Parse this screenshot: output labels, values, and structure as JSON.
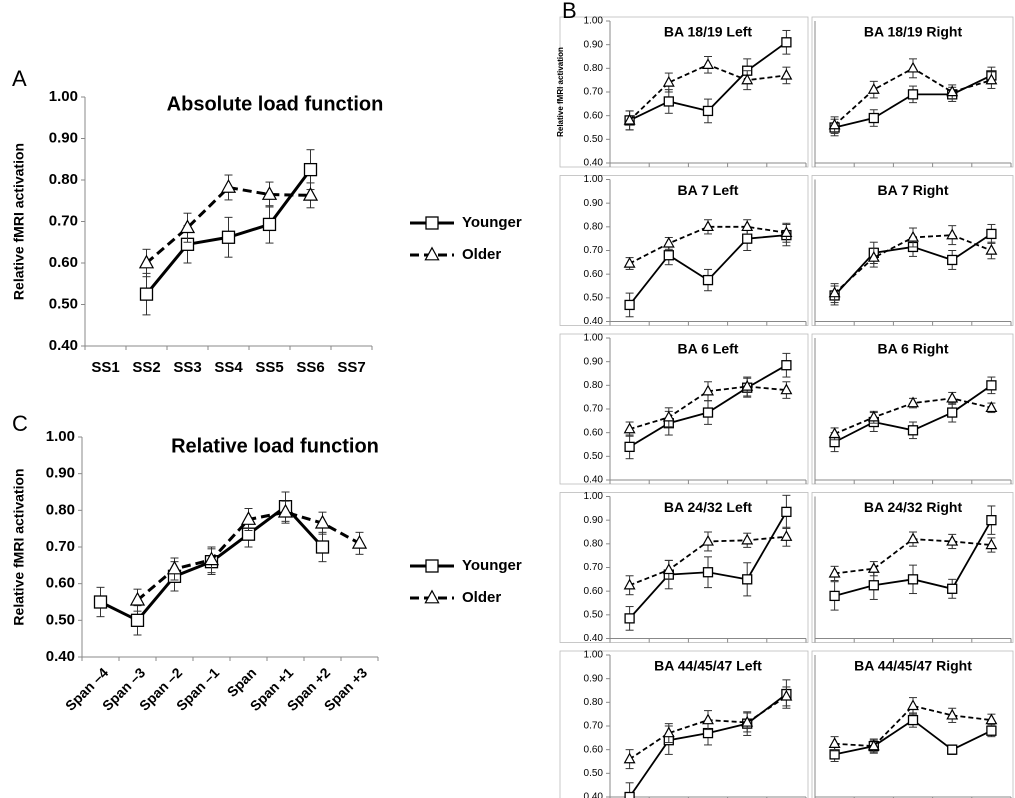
{
  "chart_data": [
    {
      "type": "line",
      "panel": "A",
      "title": "Absolute load function",
      "y_label": "Relative fMRI activation",
      "categories": [
        "SS1",
        "SS2",
        "SS3",
        "SS4",
        "SS5",
        "SS6",
        "SS7"
      ],
      "series": [
        {
          "name": "Younger",
          "color": "#000000",
          "dash": false,
          "marker": "square",
          "values": [
            null,
            0.525,
            0.645,
            0.662,
            0.693,
            0.825,
            null
          ],
          "errors": [
            null,
            0.05,
            0.045,
            0.048,
            0.045,
            0.048,
            null
          ]
        },
        {
          "name": "Older",
          "color": "#000000",
          "dash": true,
          "marker": "triangle",
          "values": [
            null,
            0.6,
            0.685,
            0.782,
            0.765,
            0.763,
            null
          ],
          "errors": [
            null,
            0.033,
            0.035,
            0.03,
            0.03,
            0.03,
            null
          ]
        }
      ],
      "ylim": [
        0.4,
        1.0
      ],
      "yticks": [
        {
          "value": 0.4,
          "label": "0.40"
        },
        {
          "value": 0.5,
          "label": "0.50"
        },
        {
          "value": 0.6,
          "label": "0.60"
        },
        {
          "value": 0.7,
          "label": "0.70"
        },
        {
          "value": 0.8,
          "label": "0.80"
        },
        {
          "value": 0.9,
          "label": "0.90"
        },
        {
          "value": 1.0,
          "label": "1.00"
        }
      ],
      "legend": "right"
    },
    {
      "type": "line",
      "panel": "C",
      "title": "Relative load function",
      "y_label": "Relative fMRI activation",
      "xlabel_rotation": -45,
      "categories": [
        "Span –4",
        "Span –3",
        "Span –2",
        "Span –1",
        "Span",
        "Span +1",
        "Span +2",
        "Span +3"
      ],
      "series": [
        {
          "name": "Younger",
          "color": "#000000",
          "dash": false,
          "marker": "square",
          "values": [
            0.55,
            0.5,
            0.62,
            0.66,
            0.735,
            0.81,
            0.7,
            null
          ],
          "errors": [
            0.04,
            0.04,
            0.04,
            0.035,
            0.035,
            0.04,
            0.04,
            null
          ]
        },
        {
          "name": "Older",
          "color": "#000000",
          "dash": true,
          "marker": "triangle",
          "values": [
            null,
            0.555,
            0.64,
            0.665,
            0.775,
            0.795,
            0.765,
            0.71
          ],
          "errors": [
            null,
            0.03,
            0.03,
            0.035,
            0.03,
            0.03,
            0.03,
            0.03
          ]
        }
      ],
      "ylim": [
        0.4,
        1.0
      ],
      "yticks": [
        {
          "value": 0.4,
          "label": "0.40"
        },
        {
          "value": 0.5,
          "label": "0.50"
        },
        {
          "value": 0.6,
          "label": "0.60"
        },
        {
          "value": 0.7,
          "label": "0.70"
        },
        {
          "value": 0.8,
          "label": "0.80"
        },
        {
          "value": 0.9,
          "label": "0.90"
        },
        {
          "value": 1.0,
          "label": "1.00"
        }
      ],
      "legend": "right"
    },
    {
      "type": "line",
      "panel": "B",
      "title": "BA 18/19 Left",
      "y_label": "Relative fMRI activation",
      "categories": [
        null,
        null,
        null,
        null,
        null
      ],
      "series": [
        {
          "color": "#000000",
          "dash": false,
          "marker": "square",
          "values": [
            0.58,
            0.66,
            0.62,
            0.79,
            0.91
          ],
          "errors": [
            0.04,
            0.05,
            0.05,
            0.05,
            0.05
          ]
        },
        {
          "color": "#000000",
          "dash": true,
          "marker": "triangle",
          "values": [
            0.58,
            0.74,
            0.815,
            0.75,
            0.77
          ],
          "errors": [
            0.04,
            0.04,
            0.035,
            0.04,
            0.035
          ]
        }
      ],
      "ylim": [
        0.4,
        1.0
      ],
      "yticks": [
        {
          "value": 0.4,
          "label": "0.40"
        },
        {
          "value": 0.5,
          "label": "0.50"
        },
        {
          "value": 0.6,
          "label": "0.60"
        },
        {
          "value": 0.7,
          "label": "0.70"
        },
        {
          "value": 0.8,
          "label": "0.80"
        },
        {
          "value": 0.9,
          "label": "0.90"
        },
        {
          "value": 1.0,
          "label": "1.00"
        }
      ]
    },
    {
      "type": "line",
      "title": "BA 18/19 Right",
      "categories": [
        null,
        null,
        null,
        null,
        null
      ],
      "series": [
        {
          "color": "#000000",
          "dash": false,
          "marker": "square",
          "values": [
            0.55,
            0.59,
            0.69,
            0.69,
            0.77
          ],
          "errors": [
            0.035,
            0.035,
            0.035,
            0.03,
            0.035
          ]
        },
        {
          "color": "#000000",
          "dash": true,
          "marker": "triangle",
          "values": [
            0.56,
            0.71,
            0.8,
            0.7,
            0.75
          ],
          "errors": [
            0.035,
            0.035,
            0.04,
            0.03,
            0.035
          ]
        }
      ],
      "ylim": [
        0.4,
        1.0
      ]
    },
    {
      "type": "line",
      "title": "BA 7 Left",
      "categories": [
        null,
        null,
        null,
        null,
        null
      ],
      "series": [
        {
          "color": "#000000",
          "dash": false,
          "marker": "square",
          "values": [
            0.47,
            0.68,
            0.575,
            0.75,
            0.765
          ],
          "errors": [
            0.05,
            0.04,
            0.045,
            0.05,
            0.045
          ]
        },
        {
          "color": "#000000",
          "dash": true,
          "marker": "triangle",
          "values": [
            0.645,
            0.73,
            0.8,
            0.8,
            0.775
          ],
          "errors": [
            0.025,
            0.025,
            0.03,
            0.03,
            0.04
          ]
        }
      ],
      "ylim": [
        0.4,
        1.0
      ],
      "yticks": [
        {
          "value": 0.4,
          "label": "0.40"
        },
        {
          "value": 0.5,
          "label": "0.50"
        },
        {
          "value": 0.6,
          "label": "0.60"
        },
        {
          "value": 0.7,
          "label": "0.70"
        },
        {
          "value": 0.8,
          "label": "0.80"
        },
        {
          "value": 0.9,
          "label": "0.90"
        },
        {
          "value": 1.0,
          "label": "1.00"
        }
      ]
    },
    {
      "type": "line",
      "title": "BA 7 Right",
      "categories": [
        null,
        null,
        null,
        null,
        null
      ],
      "series": [
        {
          "color": "#000000",
          "dash": false,
          "marker": "square",
          "values": [
            0.51,
            0.69,
            0.715,
            0.66,
            0.77
          ],
          "errors": [
            0.04,
            0.045,
            0.04,
            0.04,
            0.04
          ]
        },
        {
          "color": "#000000",
          "dash": true,
          "marker": "triangle",
          "values": [
            0.52,
            0.67,
            0.755,
            0.765,
            0.7
          ],
          "errors": [
            0.04,
            0.04,
            0.04,
            0.04,
            0.035
          ]
        }
      ],
      "ylim": [
        0.4,
        1.0
      ]
    },
    {
      "type": "line",
      "title": "BA 6 Left",
      "categories": [
        null,
        null,
        null,
        null,
        null
      ],
      "series": [
        {
          "color": "#000000",
          "dash": false,
          "marker": "square",
          "values": [
            0.54,
            0.64,
            0.685,
            0.79,
            0.885
          ],
          "errors": [
            0.05,
            0.05,
            0.05,
            0.04,
            0.05
          ]
        },
        {
          "color": "#000000",
          "dash": true,
          "marker": "triangle",
          "values": [
            0.615,
            0.665,
            0.775,
            0.795,
            0.78
          ],
          "errors": [
            0.03,
            0.04,
            0.04,
            0.04,
            0.035
          ]
        }
      ],
      "ylim": [
        0.4,
        1.0
      ],
      "yticks": [
        {
          "value": 0.4,
          "label": "0.40"
        },
        {
          "value": 0.5,
          "label": "0.50"
        },
        {
          "value": 0.6,
          "label": "0.60"
        },
        {
          "value": 0.7,
          "label": "0.70"
        },
        {
          "value": 0.8,
          "label": "0.80"
        },
        {
          "value": 0.9,
          "label": "0.90"
        },
        {
          "value": 1.0,
          "label": "1.00"
        }
      ]
    },
    {
      "type": "line",
      "title": "BA 6 Right",
      "categories": [
        null,
        null,
        null,
        null,
        null
      ],
      "series": [
        {
          "color": "#000000",
          "dash": false,
          "marker": "square",
          "values": [
            0.56,
            0.645,
            0.61,
            0.685,
            0.8
          ],
          "errors": [
            0.04,
            0.04,
            0.035,
            0.04,
            0.035
          ]
        },
        {
          "color": "#000000",
          "dash": true,
          "marker": "triangle",
          "values": [
            0.595,
            0.665,
            0.725,
            0.745,
            0.705
          ],
          "errors": [
            0.025,
            0.025,
            0.02,
            0.025,
            0.02
          ]
        }
      ],
      "ylim": [
        0.4,
        1.0
      ]
    },
    {
      "type": "line",
      "title": "BA 24/32 Left",
      "categories": [
        null,
        null,
        null,
        null,
        null
      ],
      "series": [
        {
          "color": "#000000",
          "dash": false,
          "marker": "square",
          "values": [
            0.485,
            0.67,
            0.68,
            0.65,
            0.935
          ],
          "errors": [
            0.05,
            0.06,
            0.065,
            0.07,
            0.07
          ]
        },
        {
          "color": "#000000",
          "dash": true,
          "marker": "triangle",
          "values": [
            0.625,
            0.69,
            0.81,
            0.815,
            0.83
          ],
          "errors": [
            0.04,
            0.04,
            0.04,
            0.03,
            0.04
          ]
        }
      ],
      "ylim": [
        0.4,
        1.0
      ],
      "yticks": [
        {
          "value": 0.4,
          "label": "0.40"
        },
        {
          "value": 0.5,
          "label": "0.50"
        },
        {
          "value": 0.6,
          "label": "0.60"
        },
        {
          "value": 0.7,
          "label": "0.70"
        },
        {
          "value": 0.8,
          "label": "0.80"
        },
        {
          "value": 0.9,
          "label": "0.90"
        },
        {
          "value": 1.0,
          "label": "1.00"
        }
      ]
    },
    {
      "type": "line",
      "title": "BA 24/32 Right",
      "categories": [
        null,
        null,
        null,
        null,
        null
      ],
      "series": [
        {
          "color": "#000000",
          "dash": false,
          "marker": "square",
          "values": [
            0.58,
            0.625,
            0.65,
            0.61,
            0.9
          ],
          "errors": [
            0.06,
            0.06,
            0.06,
            0.04,
            0.06
          ]
        },
        {
          "color": "#000000",
          "dash": true,
          "marker": "triangle",
          "values": [
            0.675,
            0.695,
            0.82,
            0.81,
            0.795
          ],
          "errors": [
            0.03,
            0.03,
            0.03,
            0.03,
            0.03
          ]
        }
      ],
      "ylim": [
        0.4,
        1.0
      ]
    },
    {
      "type": "line",
      "title": "BA 44/45/47 Left",
      "categories": [
        null,
        null,
        null,
        null,
        null
      ],
      "series": [
        {
          "color": "#000000",
          "dash": false,
          "marker": "square",
          "values": [
            0.4,
            0.64,
            0.67,
            0.71,
            0.835
          ],
          "errors": [
            0.06,
            0.06,
            0.05,
            0.05,
            0.06
          ]
        },
        {
          "color": "#000000",
          "dash": true,
          "marker": "triangle",
          "values": [
            0.56,
            0.67,
            0.725,
            0.715,
            0.825
          ],
          "errors": [
            0.04,
            0.04,
            0.04,
            0.04,
            0.04
          ]
        }
      ],
      "ylim": [
        0.4,
        1.0
      ],
      "yticks": [
        {
          "value": 0.4,
          "label": "0.40"
        },
        {
          "value": 0.5,
          "label": "0.50"
        },
        {
          "value": 0.6,
          "label": "0.60"
        },
        {
          "value": 0.7,
          "label": "0.70"
        },
        {
          "value": 0.8,
          "label": "0.80"
        },
        {
          "value": 0.9,
          "label": "0.90"
        },
        {
          "value": 1.0,
          "label": "1.00"
        }
      ]
    },
    {
      "type": "line",
      "title": "BA 44/45/47 Right",
      "categories": [
        null,
        null,
        null,
        null,
        null
      ],
      "series": [
        {
          "color": "#000000",
          "dash": false,
          "marker": "square",
          "values": [
            0.58,
            0.615,
            0.725,
            0.6,
            0.68
          ],
          "errors": [
            0.03,
            0.03,
            0.03,
            0.02,
            0.025
          ]
        },
        {
          "color": "#000000",
          "dash": true,
          "marker": "triangle",
          "values": [
            0.625,
            0.615,
            0.785,
            0.745,
            0.725
          ],
          "errors": [
            0.03,
            0.025,
            0.035,
            0.03,
            0.025
          ]
        }
      ],
      "ylim": [
        0.4,
        1.0
      ]
    }
  ]
}
